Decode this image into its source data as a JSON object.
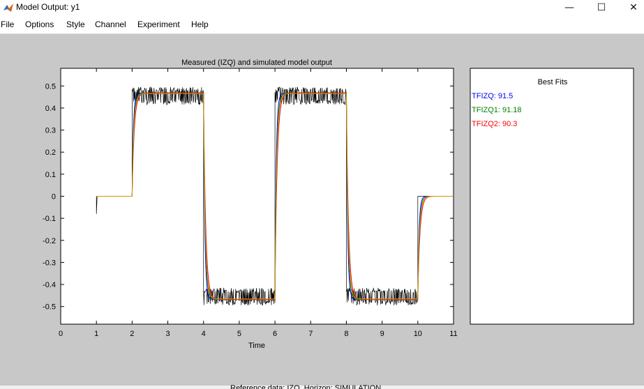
{
  "window": {
    "title": "Model Output: y1",
    "icon": "matlab-icon",
    "controls": {
      "minimize": "—",
      "maximize": "☐",
      "close": "✕"
    }
  },
  "menu": {
    "items": [
      {
        "label": "File"
      },
      {
        "label": "Options"
      },
      {
        "label": "Style"
      },
      {
        "label": "Channel"
      },
      {
        "label": "Experiment"
      },
      {
        "label": "Help"
      }
    ]
  },
  "chart_data": {
    "type": "line",
    "title": "Measured (IZQ) and simulated model output",
    "xlabel": "Time",
    "ylabel": "",
    "xlim": [
      0,
      11
    ],
    "ylim": [
      -0.58,
      0.58
    ],
    "xticks": [
      0,
      1,
      2,
      3,
      4,
      5,
      6,
      7,
      8,
      9,
      10,
      11
    ],
    "yticks": [
      0.5,
      0.4,
      0.3,
      0.2,
      0.1,
      0,
      -0.1,
      -0.2,
      -0.3,
      -0.4,
      -0.5
    ],
    "ytick_labels": [
      "0.5",
      "0.4",
      "0.3",
      "0.2",
      "0.1",
      "0",
      "-0.1",
      "-0.2",
      "-0.3",
      "-0.4",
      "-0.5"
    ],
    "grid": false,
    "measured": {
      "color": "#000000",
      "steps": [
        {
          "t0": 0.0,
          "t1": 1.0,
          "level": null
        },
        {
          "t0": 1.0,
          "t1": 2.0,
          "level": 0.0
        },
        {
          "t0": 2.0,
          "t1": 4.0,
          "level": 0.455,
          "noise": 0.04
        },
        {
          "t0": 4.0,
          "t1": 6.0,
          "level": -0.455,
          "noise": 0.04
        },
        {
          "t0": 6.0,
          "t1": 8.0,
          "level": 0.455,
          "noise": 0.04
        },
        {
          "t0": 8.0,
          "t1": 10.0,
          "level": -0.455,
          "noise": 0.04
        },
        {
          "t0": 10.0,
          "t1": 11.0,
          "level": 0.0
        }
      ],
      "spike_at_1": -0.08
    },
    "series": [
      {
        "name": "TFIZQ",
        "color": "#0000ff",
        "fit": 91.5,
        "level": 0.468
      },
      {
        "name": "TFIZQ1",
        "color": "#008000",
        "fit": 91.18,
        "level": 0.468
      },
      {
        "name": "TFIZQ2",
        "color": "#ff0000",
        "fit": 90.3,
        "level": 0.468
      },
      {
        "name": "",
        "color": "#c8a000",
        "fit": null,
        "level": 0.466
      }
    ],
    "input_steps": [
      {
        "t": 1.0,
        "v": 0.0
      },
      {
        "t": 2.0,
        "v": 1
      },
      {
        "t": 4.0,
        "v": -1
      },
      {
        "t": 6.0,
        "v": 1
      },
      {
        "t": 8.0,
        "v": -1
      },
      {
        "t": 10.0,
        "v": 0
      }
    ]
  },
  "legend_panel": {
    "title": "Best Fits",
    "entries": [
      {
        "text": "TFIZQ: 91.5",
        "color": "#0000ff"
      },
      {
        "text": "TFIZQ1: 91.18",
        "color": "#008000"
      },
      {
        "text": "TFIZQ2: 90.3",
        "color": "#ff0000"
      }
    ]
  },
  "bottom_text": "Reference data: IZQ. Horizon: SIMULATION"
}
